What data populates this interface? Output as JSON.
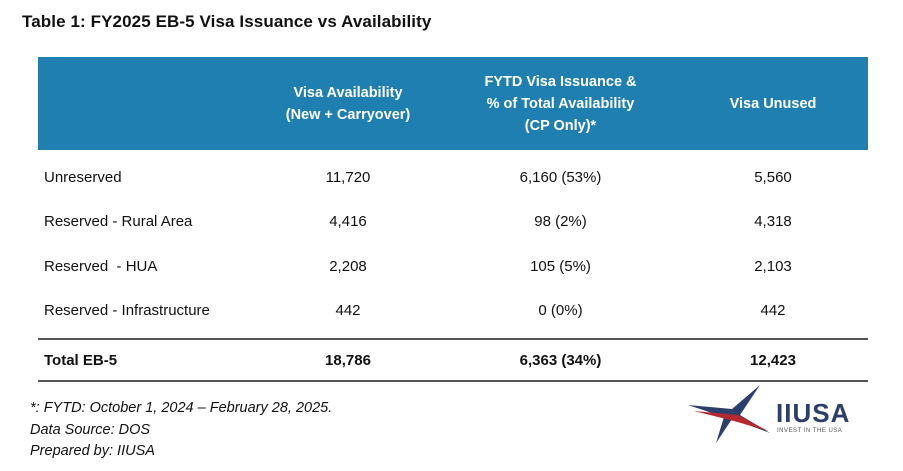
{
  "title": "Table 1: FY2025 EB-5 Visa Issuance vs Availability",
  "header": {
    "col0": "",
    "col1": [
      "Visa Availability",
      "(New + Carryover)"
    ],
    "col2": [
      "FYTD Visa Issuance &",
      "% of Total Availability",
      "(CP Only)*"
    ],
    "col3": "Visa Unused"
  },
  "rows": [
    {
      "label": "Unreserved",
      "availability": "11,720",
      "issuance": "6,160 (53%)",
      "unused": "5,560"
    },
    {
      "label": "Reserved - Rural Area",
      "availability": "4,416",
      "issuance": "98 (2%)",
      "unused": "4,318"
    },
    {
      "label": "Reserved  - HUA",
      "availability": "2,208",
      "issuance": "105 (5%)",
      "unused": "2,103"
    },
    {
      "label": "Reserved - Infrastructure",
      "availability": "442",
      "issuance": "0 (0%)",
      "unused": "442"
    }
  ],
  "total": {
    "label": "Total EB-5",
    "availability": "18,786",
    "issuance": "6,363 (34%)",
    "unused": "12,423"
  },
  "footnotes": [
    "*: FYTD: October 1, 2024 – February 28, 2025.",
    "Data Source: DOS",
    "Prepared by: IIUSA"
  ],
  "logo": {
    "text": "IIUSA",
    "subtext": "INVEST IN THE USA",
    "colors": {
      "navy": "#2c3e6b",
      "red": "#b5282e"
    }
  },
  "colors": {
    "header_bg": "#1f7fb0"
  }
}
